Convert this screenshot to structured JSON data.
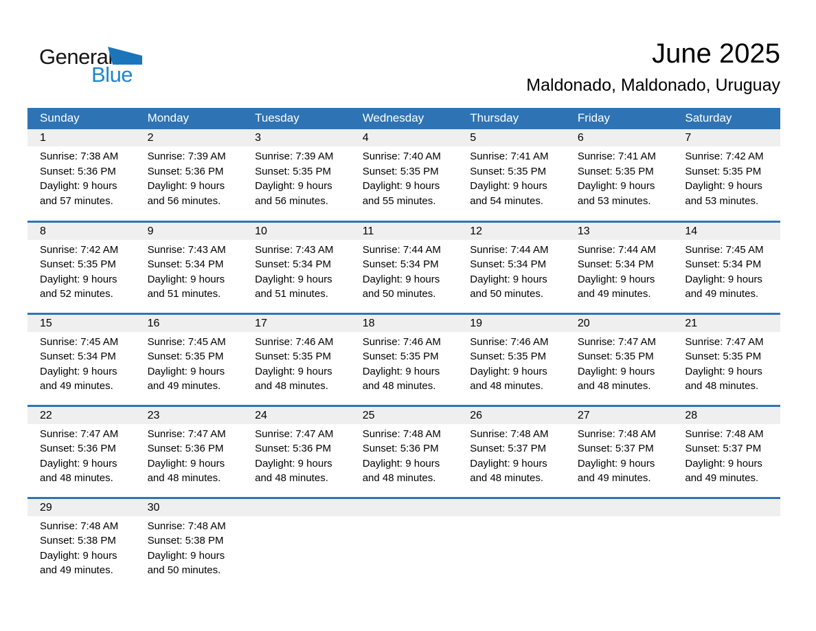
{
  "logo": {
    "general": "General",
    "blue": "Blue"
  },
  "header": {
    "title": "June 2025",
    "subtitle": "Maldonado, Maldonado, Uruguay"
  },
  "colors": {
    "header_bg": "#2E73B4",
    "week_border": "#2E74B5",
    "day_strip_bg": "#EFEFEF",
    "logo_blue": "#1E86CD",
    "logo_triangle": "#1B75BB"
  },
  "weekdays": [
    "Sunday",
    "Monday",
    "Tuesday",
    "Wednesday",
    "Thursday",
    "Friday",
    "Saturday"
  ],
  "weeks": [
    [
      {
        "day": "1",
        "lines": [
          "Sunrise: 7:38 AM",
          "Sunset: 5:36 PM",
          "Daylight: 9 hours",
          "and 57 minutes."
        ]
      },
      {
        "day": "2",
        "lines": [
          "Sunrise: 7:39 AM",
          "Sunset: 5:36 PM",
          "Daylight: 9 hours",
          "and 56 minutes."
        ]
      },
      {
        "day": "3",
        "lines": [
          "Sunrise: 7:39 AM",
          "Sunset: 5:35 PM",
          "Daylight: 9 hours",
          "and 56 minutes."
        ]
      },
      {
        "day": "4",
        "lines": [
          "Sunrise: 7:40 AM",
          "Sunset: 5:35 PM",
          "Daylight: 9 hours",
          "and 55 minutes."
        ]
      },
      {
        "day": "5",
        "lines": [
          "Sunrise: 7:41 AM",
          "Sunset: 5:35 PM",
          "Daylight: 9 hours",
          "and 54 minutes."
        ]
      },
      {
        "day": "6",
        "lines": [
          "Sunrise: 7:41 AM",
          "Sunset: 5:35 PM",
          "Daylight: 9 hours",
          "and 53 minutes."
        ]
      },
      {
        "day": "7",
        "lines": [
          "Sunrise: 7:42 AM",
          "Sunset: 5:35 PM",
          "Daylight: 9 hours",
          "and 53 minutes."
        ]
      }
    ],
    [
      {
        "day": "8",
        "lines": [
          "Sunrise: 7:42 AM",
          "Sunset: 5:35 PM",
          "Daylight: 9 hours",
          "and 52 minutes."
        ]
      },
      {
        "day": "9",
        "lines": [
          "Sunrise: 7:43 AM",
          "Sunset: 5:34 PM",
          "Daylight: 9 hours",
          "and 51 minutes."
        ]
      },
      {
        "day": "10",
        "lines": [
          "Sunrise: 7:43 AM",
          "Sunset: 5:34 PM",
          "Daylight: 9 hours",
          "and 51 minutes."
        ]
      },
      {
        "day": "11",
        "lines": [
          "Sunrise: 7:44 AM",
          "Sunset: 5:34 PM",
          "Daylight: 9 hours",
          "and 50 minutes."
        ]
      },
      {
        "day": "12",
        "lines": [
          "Sunrise: 7:44 AM",
          "Sunset: 5:34 PM",
          "Daylight: 9 hours",
          "and 50 minutes."
        ]
      },
      {
        "day": "13",
        "lines": [
          "Sunrise: 7:44 AM",
          "Sunset: 5:34 PM",
          "Daylight: 9 hours",
          "and 49 minutes."
        ]
      },
      {
        "day": "14",
        "lines": [
          "Sunrise: 7:45 AM",
          "Sunset: 5:34 PM",
          "Daylight: 9 hours",
          "and 49 minutes."
        ]
      }
    ],
    [
      {
        "day": "15",
        "lines": [
          "Sunrise: 7:45 AM",
          "Sunset: 5:34 PM",
          "Daylight: 9 hours",
          "and 49 minutes."
        ]
      },
      {
        "day": "16",
        "lines": [
          "Sunrise: 7:45 AM",
          "Sunset: 5:35 PM",
          "Daylight: 9 hours",
          "and 49 minutes."
        ]
      },
      {
        "day": "17",
        "lines": [
          "Sunrise: 7:46 AM",
          "Sunset: 5:35 PM",
          "Daylight: 9 hours",
          "and 48 minutes."
        ]
      },
      {
        "day": "18",
        "lines": [
          "Sunrise: 7:46 AM",
          "Sunset: 5:35 PM",
          "Daylight: 9 hours",
          "and 48 minutes."
        ]
      },
      {
        "day": "19",
        "lines": [
          "Sunrise: 7:46 AM",
          "Sunset: 5:35 PM",
          "Daylight: 9 hours",
          "and 48 minutes."
        ]
      },
      {
        "day": "20",
        "lines": [
          "Sunrise: 7:47 AM",
          "Sunset: 5:35 PM",
          "Daylight: 9 hours",
          "and 48 minutes."
        ]
      },
      {
        "day": "21",
        "lines": [
          "Sunrise: 7:47 AM",
          "Sunset: 5:35 PM",
          "Daylight: 9 hours",
          "and 48 minutes."
        ]
      }
    ],
    [
      {
        "day": "22",
        "lines": [
          "Sunrise: 7:47 AM",
          "Sunset: 5:36 PM",
          "Daylight: 9 hours",
          "and 48 minutes."
        ]
      },
      {
        "day": "23",
        "lines": [
          "Sunrise: 7:47 AM",
          "Sunset: 5:36 PM",
          "Daylight: 9 hours",
          "and 48 minutes."
        ]
      },
      {
        "day": "24",
        "lines": [
          "Sunrise: 7:47 AM",
          "Sunset: 5:36 PM",
          "Daylight: 9 hours",
          "and 48 minutes."
        ]
      },
      {
        "day": "25",
        "lines": [
          "Sunrise: 7:48 AM",
          "Sunset: 5:36 PM",
          "Daylight: 9 hours",
          "and 48 minutes."
        ]
      },
      {
        "day": "26",
        "lines": [
          "Sunrise: 7:48 AM",
          "Sunset: 5:37 PM",
          "Daylight: 9 hours",
          "and 48 minutes."
        ]
      },
      {
        "day": "27",
        "lines": [
          "Sunrise: 7:48 AM",
          "Sunset: 5:37 PM",
          "Daylight: 9 hours",
          "and 49 minutes."
        ]
      },
      {
        "day": "28",
        "lines": [
          "Sunrise: 7:48 AM",
          "Sunset: 5:37 PM",
          "Daylight: 9 hours",
          "and 49 minutes."
        ]
      }
    ],
    [
      {
        "day": "29",
        "lines": [
          "Sunrise: 7:48 AM",
          "Sunset: 5:38 PM",
          "Daylight: 9 hours",
          "and 49 minutes."
        ]
      },
      {
        "day": "30",
        "lines": [
          "Sunrise: 7:48 AM",
          "Sunset: 5:38 PM",
          "Daylight: 9 hours",
          "and 50 minutes."
        ]
      },
      null,
      null,
      null,
      null,
      null
    ]
  ]
}
